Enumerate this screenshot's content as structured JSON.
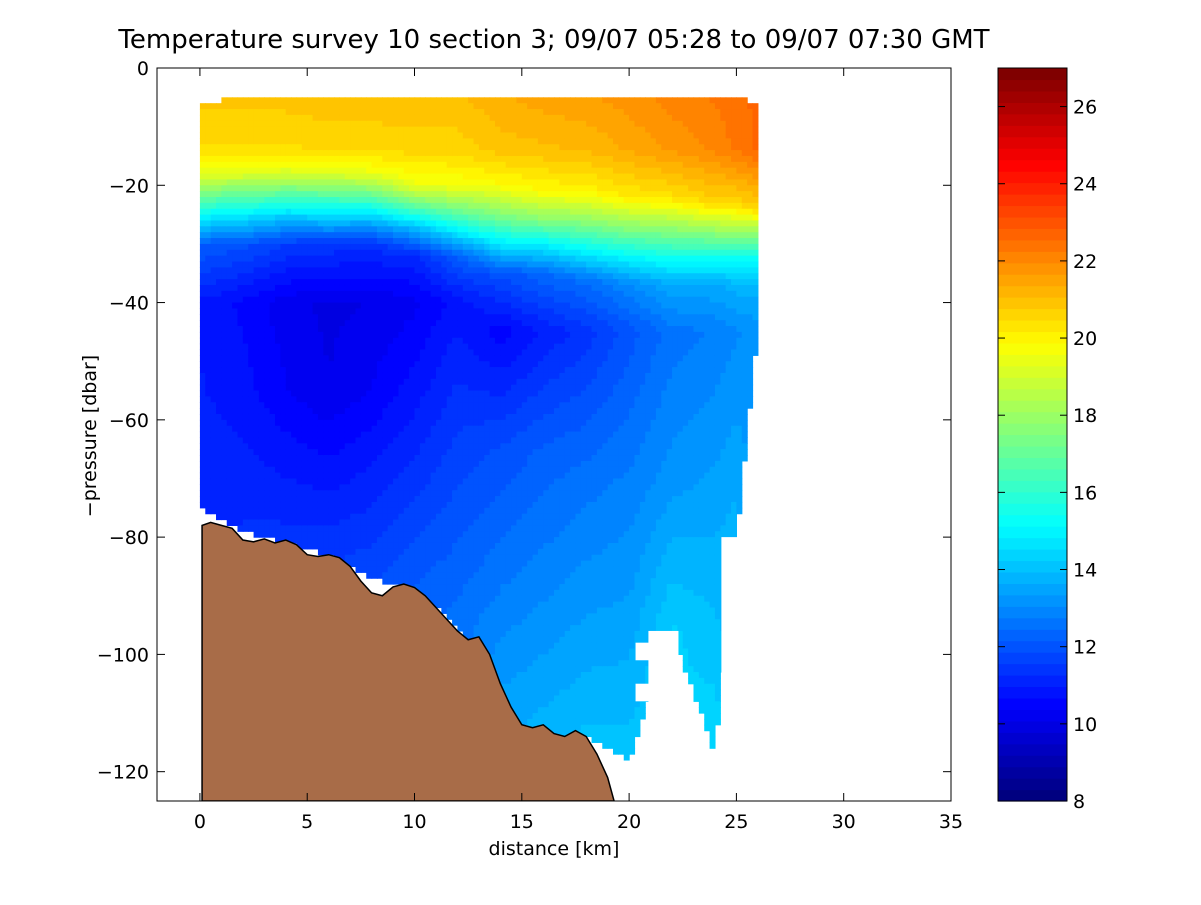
{
  "chart_data": {
    "type": "heatmap",
    "title": "Temperature survey 10 section 3; 09/07 05:28 to 09/07 07:30 GMT",
    "xlabel": "distance [km]",
    "ylabel": "−pressure [dbar]",
    "xlim": [
      -2,
      35
    ],
    "ylim": [
      -125,
      0
    ],
    "xticks": [
      0,
      5,
      10,
      15,
      20,
      25,
      30,
      35
    ],
    "xtick_labels": [
      "0",
      "5",
      "10",
      "15",
      "20",
      "25",
      "30",
      "35"
    ],
    "yticks": [
      0,
      -20,
      -40,
      -60,
      -80,
      -100,
      -120
    ],
    "ytick_labels": [
      "0",
      "−20",
      "−40",
      "−60",
      "−80",
      "−100",
      "−120"
    ],
    "grid": false,
    "colorbar": {
      "range": [
        8,
        27
      ],
      "ticks": [
        10,
        12,
        14,
        16,
        18,
        20,
        22,
        24,
        26
      ],
      "tick_labels": [
        "10",
        "12",
        "14",
        "16",
        "18",
        "20",
        "22",
        "24",
        "26"
      ],
      "colormap": "jet"
    },
    "temperature_profiles": [
      {
        "x": 0.0,
        "top": -6,
        "bottom": -75,
        "temps": [
          [
            -6,
            20.8
          ],
          [
            -14,
            20.4
          ],
          [
            -18,
            19.3
          ],
          [
            -22,
            17.0
          ],
          [
            -26,
            14.6
          ],
          [
            -30,
            12.2
          ],
          [
            -40,
            10.9
          ],
          [
            -55,
            11.0
          ],
          [
            -75,
            11.2
          ]
        ]
      },
      {
        "x": 2.0,
        "top": -5,
        "bottom": -79,
        "temps": [
          [
            -5,
            20.9
          ],
          [
            -14,
            20.4
          ],
          [
            -18,
            19.3
          ],
          [
            -22,
            16.8
          ],
          [
            -26,
            14.3
          ],
          [
            -30,
            12.0
          ],
          [
            -40,
            10.6
          ],
          [
            -55,
            10.8
          ],
          [
            -79,
            11.3
          ]
        ]
      },
      {
        "x": 4.0,
        "top": -5,
        "bottom": -81,
        "temps": [
          [
            -5,
            20.9
          ],
          [
            -14,
            20.4
          ],
          [
            -18,
            19.1
          ],
          [
            -22,
            16.5
          ],
          [
            -26,
            13.8
          ],
          [
            -30,
            11.6
          ],
          [
            -40,
            10.2
          ],
          [
            -55,
            10.4
          ],
          [
            -81,
            11.4
          ]
        ]
      },
      {
        "x": 6.0,
        "top": -5,
        "bottom": -83,
        "temps": [
          [
            -5,
            21.0
          ],
          [
            -14,
            20.5
          ],
          [
            -18,
            19.2
          ],
          [
            -22,
            16.6
          ],
          [
            -26,
            14.0
          ],
          [
            -30,
            11.5
          ],
          [
            -40,
            10.0
          ],
          [
            -55,
            10.1
          ],
          [
            -83,
            11.5
          ]
        ]
      },
      {
        "x": 8.0,
        "top": -5,
        "bottom": -87,
        "temps": [
          [
            -5,
            21.0
          ],
          [
            -14,
            20.5
          ],
          [
            -18,
            19.5
          ],
          [
            -22,
            16.8
          ],
          [
            -26,
            13.9
          ],
          [
            -30,
            11.4
          ],
          [
            -40,
            10.1
          ],
          [
            -55,
            10.4
          ],
          [
            -87,
            11.8
          ]
        ]
      },
      {
        "x": 10.0,
        "top": -5,
        "bottom": -89,
        "temps": [
          [
            -5,
            21.0
          ],
          [
            -14,
            20.6
          ],
          [
            -20,
            19.5
          ],
          [
            -24,
            16.5
          ],
          [
            -28,
            13.4
          ],
          [
            -32,
            11.2
          ],
          [
            -40,
            10.3
          ],
          [
            -60,
            11.0
          ],
          [
            -89,
            12.2
          ]
        ]
      },
      {
        "x": 12.0,
        "top": -5,
        "bottom": -95,
        "temps": [
          [
            -5,
            21.0
          ],
          [
            -14,
            20.6
          ],
          [
            -20,
            19.6
          ],
          [
            -24,
            17.4
          ],
          [
            -28,
            14.8
          ],
          [
            -32,
            12.2
          ],
          [
            -40,
            10.8
          ],
          [
            -60,
            11.5
          ],
          [
            -95,
            12.6
          ]
        ]
      },
      {
        "x": 14.0,
        "top": -5,
        "bottom": -110,
        "temps": [
          [
            -5,
            21.3
          ],
          [
            -14,
            20.9
          ],
          [
            -20,
            19.8
          ],
          [
            -25,
            17.6
          ],
          [
            -30,
            14.8
          ],
          [
            -35,
            12.0
          ],
          [
            -45,
            10.5
          ],
          [
            -65,
            11.9
          ],
          [
            -110,
            13.5
          ]
        ]
      },
      {
        "x": 16.0,
        "top": -5,
        "bottom": -114,
        "temps": [
          [
            -5,
            21.5
          ],
          [
            -14,
            21.0
          ],
          [
            -21,
            19.9
          ],
          [
            -26,
            17.6
          ],
          [
            -30,
            15.0
          ],
          [
            -35,
            12.4
          ],
          [
            -45,
            11.0
          ],
          [
            -65,
            12.2
          ],
          [
            -114,
            13.8
          ]
        ]
      },
      {
        "x": 18.0,
        "top": -5,
        "bottom": -114,
        "temps": [
          [
            -5,
            21.6
          ],
          [
            -14,
            21.1
          ],
          [
            -21,
            20.0
          ],
          [
            -26,
            17.8
          ],
          [
            -31,
            15.2
          ],
          [
            -36,
            12.6
          ],
          [
            -45,
            11.4
          ],
          [
            -70,
            12.6
          ],
          [
            -114,
            14.0
          ]
        ]
      },
      {
        "x": 20.0,
        "top": -5,
        "bottom": -118,
        "temps": [
          [
            -5,
            21.8
          ],
          [
            -14,
            21.4
          ],
          [
            -22,
            20.2
          ],
          [
            -27,
            17.8
          ],
          [
            -32,
            15.2
          ],
          [
            -37,
            13.0
          ],
          [
            -45,
            12.0
          ],
          [
            -70,
            12.8
          ],
          [
            -118,
            14.1
          ]
        ]
      },
      {
        "x": 22.0,
        "top": -5,
        "bottom": -96,
        "temps": [
          [
            -5,
            22.1
          ],
          [
            -14,
            21.7
          ],
          [
            -22,
            20.4
          ],
          [
            -27,
            18.0
          ],
          [
            -32,
            15.6
          ],
          [
            -37,
            13.6
          ],
          [
            -45,
            12.6
          ],
          [
            -70,
            13.2
          ],
          [
            -96,
            14.3
          ]
        ]
      },
      {
        "x": 24.0,
        "top": -5,
        "bottom": -117,
        "temps": [
          [
            -5,
            22.3
          ],
          [
            -14,
            22.0
          ],
          [
            -23,
            20.6
          ],
          [
            -28,
            17.8
          ],
          [
            -32,
            15.5
          ],
          [
            -37,
            13.6
          ],
          [
            -45,
            12.8
          ],
          [
            -70,
            13.4
          ],
          [
            -117,
            14.5
          ]
        ]
      },
      {
        "x": 25.0,
        "top": -5,
        "bottom": -80,
        "temps": [
          [
            -5,
            22.5
          ],
          [
            -14,
            22.3
          ],
          [
            -23,
            20.6
          ],
          [
            -28,
            18.0
          ],
          [
            -32,
            15.6
          ],
          [
            -37,
            13.8
          ],
          [
            -45,
            13.0
          ],
          [
            -80,
            13.8
          ]
        ]
      },
      {
        "x": 26.0,
        "top": -6,
        "bottom": -45,
        "temps": [
          [
            -6,
            22.6
          ],
          [
            -14,
            22.6
          ],
          [
            -24,
            20.6
          ],
          [
            -28,
            18.0
          ],
          [
            -32,
            15.6
          ],
          [
            -37,
            13.8
          ],
          [
            -45,
            13.2
          ]
        ]
      }
    ],
    "sampling_gaps": [
      {
        "x0": 20.3,
        "x1": 21.4,
        "y0": -101,
        "y1": -98
      },
      {
        "x0": 20.3,
        "x1": 21.4,
        "y0": -108,
        "y1": -105
      },
      {
        "x0": 20.9,
        "x1": 22.3,
        "y0": -125,
        "y1": -96
      },
      {
        "x0": 24.3,
        "x1": 26.5,
        "y0": -125,
        "y1": -80
      }
    ],
    "seabed": [
      [
        0.1,
        -78
      ],
      [
        0.5,
        -77.5
      ],
      [
        1.0,
        -78
      ],
      [
        1.5,
        -78.5
      ],
      [
        2.0,
        -80.5
      ],
      [
        2.5,
        -80.8
      ],
      [
        3.0,
        -80.3
      ],
      [
        3.5,
        -81
      ],
      [
        4.0,
        -80.5
      ],
      [
        4.5,
        -81.3
      ],
      [
        5.0,
        -83
      ],
      [
        5.5,
        -83.3
      ],
      [
        6.0,
        -83
      ],
      [
        6.5,
        -83.5
      ],
      [
        7.0,
        -85
      ],
      [
        7.5,
        -87.5
      ],
      [
        8.0,
        -89.5
      ],
      [
        8.5,
        -90
      ],
      [
        9.0,
        -88.5
      ],
      [
        9.5,
        -88
      ],
      [
        10.0,
        -88.6
      ],
      [
        10.5,
        -90
      ],
      [
        11.0,
        -92
      ],
      [
        11.5,
        -94
      ],
      [
        12.0,
        -96
      ],
      [
        12.5,
        -97.5
      ],
      [
        13.0,
        -97
      ],
      [
        13.5,
        -100
      ],
      [
        14.0,
        -105
      ],
      [
        14.5,
        -109
      ],
      [
        15.0,
        -112
      ],
      [
        15.5,
        -112.5
      ],
      [
        16.0,
        -112
      ],
      [
        16.5,
        -113.5
      ],
      [
        17.0,
        -114
      ],
      [
        17.5,
        -113
      ],
      [
        18.0,
        -114
      ],
      [
        18.5,
        -117
      ],
      [
        19.0,
        -121
      ],
      [
        19.3,
        -125
      ]
    ],
    "seabed_color": "#a86c48"
  }
}
